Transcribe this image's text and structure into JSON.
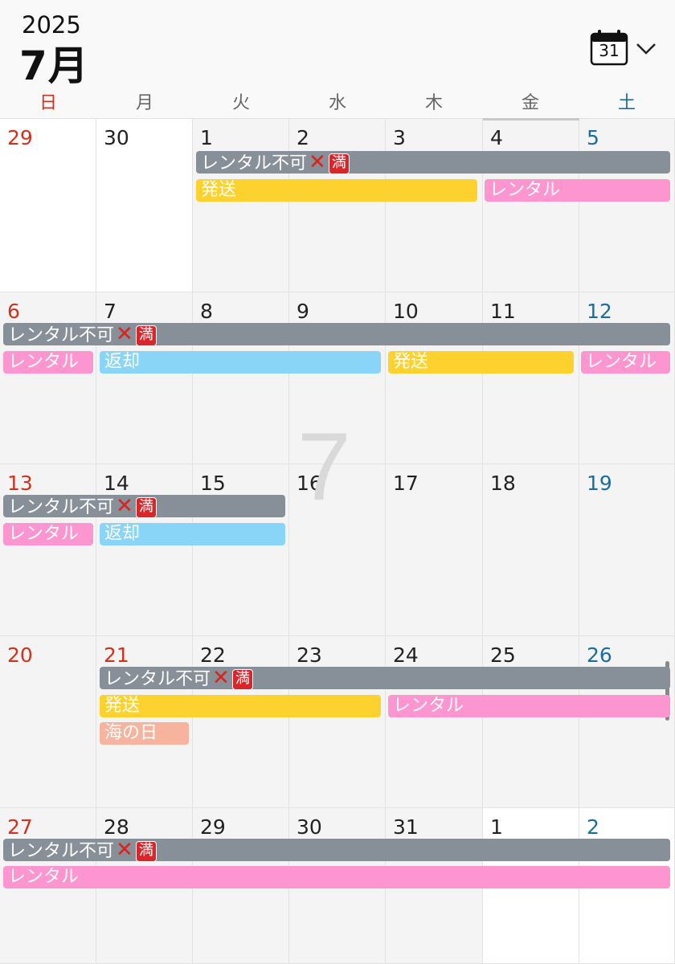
{
  "header": {
    "year": "2025",
    "month": "7月",
    "calendar_icon_day": "31"
  },
  "weekdays": [
    "日",
    "月",
    "火",
    "水",
    "木",
    "金",
    "土"
  ],
  "weeks": [
    [
      "29",
      "30",
      "1",
      "2",
      "3",
      "4",
      "5"
    ],
    [
      "6",
      "7",
      "8",
      "9",
      "10",
      "11",
      "12"
    ],
    [
      "13",
      "14",
      "15",
      "16",
      "17",
      "18",
      "19"
    ],
    [
      "20",
      "21",
      "22",
      "23",
      "24",
      "25",
      "26"
    ],
    [
      "27",
      "28",
      "29",
      "30",
      "31",
      "1",
      "2"
    ]
  ],
  "watermark": "7",
  "events": {
    "blocked_label": "レンタル不可",
    "blocked_x": "✕",
    "blocked_full": "満",
    "shipping": "発送",
    "rental": "レンタル",
    "return": "返却",
    "holiday": "海の日"
  },
  "colors": {
    "blocked": "#878f98",
    "shipping": "#fdd22f",
    "rental": "#fd95d0",
    "return": "#89d5f8",
    "holiday": "#f6b39e",
    "sunday": "#d0321e",
    "saturday": "#1a6ea0"
  }
}
